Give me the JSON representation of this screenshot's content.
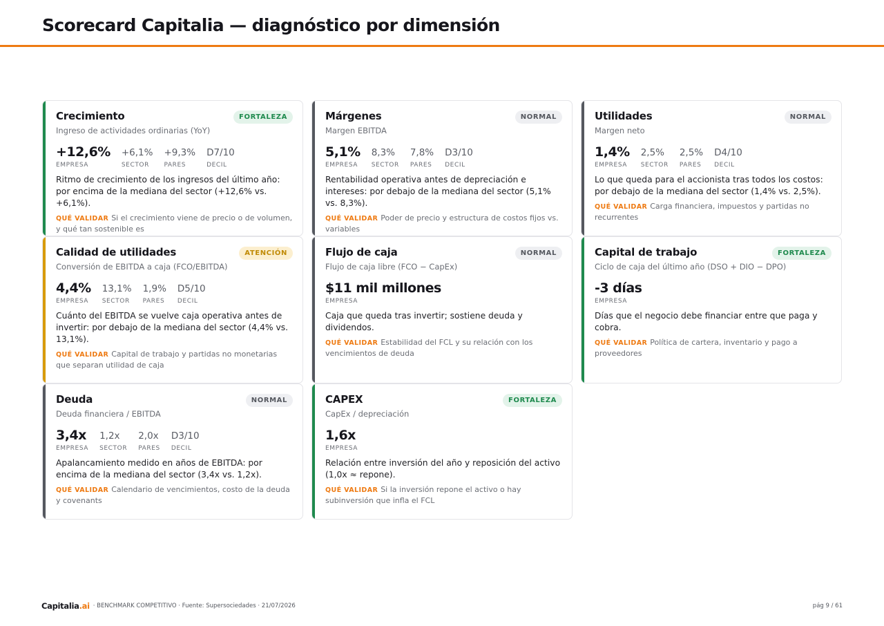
{
  "page": {
    "title": "Scorecard Capitalia — diagnóstico por dimensión",
    "accent_color": "#ee7a12"
  },
  "labels": {
    "empresa": "EMPRESA",
    "sector": "SECTOR",
    "pares": "PARES",
    "decil": "DECIL",
    "que_validar": "QUÉ VALIDAR"
  },
  "cards": [
    {
      "title": "Crecimiento",
      "badge": "FORTALEZA",
      "status": "fortaleza",
      "subtitle": "Ingreso de actividades ordinarias (YoY)",
      "empresa": "+12,6%",
      "sector": "+6,1%",
      "pares": "+9,3%",
      "decil": "D7/10",
      "description": "Ritmo de crecimiento de los ingresos del último año: por encima de la mediana del sector (+12,6% vs. +6,1%).",
      "validar": "Si el crecimiento viene de precio o de volumen, y qué tan sostenible es"
    },
    {
      "title": "Márgenes",
      "badge": "NORMAL",
      "status": "normal",
      "subtitle": "Margen EBITDA",
      "empresa": "5,1%",
      "sector": "8,3%",
      "pares": "7,8%",
      "decil": "D3/10",
      "description": "Rentabilidad operativa antes de depreciación e intereses: por debajo de la mediana del sector (5,1% vs. 8,3%).",
      "validar": "Poder de precio y estructura de costos fijos vs. variables"
    },
    {
      "title": "Utilidades",
      "badge": "NORMAL",
      "status": "normal",
      "subtitle": "Margen neto",
      "empresa": "1,4%",
      "sector": "2,5%",
      "pares": "2,5%",
      "decil": "D4/10",
      "description": "Lo que queda para el accionista tras todos los costos: por debajo de la mediana del sector (1,4% vs. 2,5%).",
      "validar": "Carga financiera, impuestos y partidas no recurrentes"
    },
    {
      "title": "Calidad de utilidades",
      "badge": "ATENCIÓN",
      "status": "atencion",
      "subtitle": "Conversión de EBITDA a caja (FCO/EBITDA)",
      "empresa": "4,4%",
      "sector": "13,1%",
      "pares": "1,9%",
      "decil": "D5/10",
      "description": "Cuánto del EBITDA se vuelve caja operativa antes de invertir: por debajo de la mediana del sector (4,4% vs. 13,1%).",
      "validar": "Capital de trabajo y partidas no monetarias que separan utilidad de caja"
    },
    {
      "title": "Flujo de caja",
      "badge": "NORMAL",
      "status": "normal",
      "subtitle": "Flujo de caja libre (FCO − CapEx)",
      "empresa": "$11 mil millones",
      "description": "Caja que queda tras invertir; sostiene deuda y dividendos.",
      "validar": "Estabilidad del FCL y su relación con los vencimientos de deuda"
    },
    {
      "title": "Capital de trabajo",
      "badge": "FORTALEZA",
      "status": "fortaleza",
      "subtitle": "Ciclo de caja del último año (DSO + DIO − DPO)",
      "empresa": "-3 días",
      "description": "Días que el negocio debe financiar entre que paga y cobra.",
      "validar": "Política de cartera, inventario y pago a proveedores"
    },
    {
      "title": "Deuda",
      "badge": "NORMAL",
      "status": "normal",
      "subtitle": "Deuda financiera / EBITDA",
      "empresa": "3,4x",
      "sector": "1,2x",
      "pares": "2,0x",
      "decil": "D3/10",
      "description": "Apalancamiento medido en años de EBITDA: por encima de la mediana del sector (3,4x vs. 1,2x).",
      "validar": "Calendario de vencimientos, costo de la deuda y covenants"
    },
    {
      "title": "CAPEX",
      "badge": "FORTALEZA",
      "status": "fortaleza",
      "subtitle": "CapEx / depreciación",
      "empresa": "1,6x",
      "description": "Relación entre inversión del año y reposición del activo (1,0x ≈ repone).",
      "validar": "Si la inversión repone el activo o hay subinversión que infla el FCL"
    }
  ],
  "colors": {
    "fortaleza": "#1f8a4e",
    "normal": "#55585f",
    "atencion": "#d89b0c"
  },
  "footer": {
    "brand_main": "Capitalia",
    "brand_suffix": ".ai",
    "text": "· BENCHMARK COMPETITIVO · Fuente: Supersociedades · 21/07/2026",
    "page": "pág 9  /  61"
  }
}
